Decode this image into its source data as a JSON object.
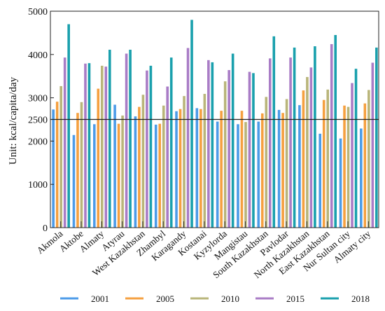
{
  "chart_data": {
    "type": "bar",
    "title": "",
    "xlabel": "",
    "ylabel": "Unit: kcal/capita/day",
    "ylim": [
      0,
      5000
    ],
    "yticks": [
      0,
      1000,
      2000,
      3000,
      4000,
      5000
    ],
    "reference_line": {
      "value": 2500,
      "label": "2500",
      "color": "#222222"
    },
    "grid": false,
    "legend_position": "bottom",
    "categories": [
      "Akmola",
      "Aktobe",
      "Almaty",
      "Atyrau",
      "West Kazakhstan",
      "Zhambyl",
      "Karagandy",
      "Kostanai",
      "Kyzylorda",
      "Mangistau",
      "South Kazakhstan",
      "Pavlodar",
      "North Kazakhstan",
      "East Kazakhstan",
      "Nur Sultan city",
      "Almaty city"
    ],
    "series": [
      {
        "name": "2001",
        "color": "#4c9be8",
        "values": [
          2730,
          2140,
          2390,
          2840,
          2570,
          2380,
          2690,
          2760,
          2450,
          2390,
          2450,
          2720,
          2830,
          2170,
          2060,
          2290
        ]
      },
      {
        "name": "2005",
        "color": "#f5a040",
        "values": [
          2910,
          2650,
          3210,
          2400,
          2790,
          2400,
          2740,
          2740,
          2700,
          2700,
          2640,
          2650,
          3170,
          2950,
          2820,
          2870
        ]
      },
      {
        "name": "2010",
        "color": "#b9b57a",
        "values": [
          3270,
          2900,
          3740,
          2590,
          3070,
          2820,
          3040,
          3090,
          3380,
          2440,
          3020,
          2970,
          3480,
          3190,
          2790,
          3180
        ]
      },
      {
        "name": "2015",
        "color": "#a97cc6",
        "values": [
          3930,
          3790,
          3720,
          4020,
          3630,
          3260,
          4150,
          3870,
          3640,
          3600,
          3910,
          3930,
          3700,
          4240,
          3340,
          3810
        ]
      },
      {
        "name": "2018",
        "color": "#1aa0ad",
        "values": [
          4700,
          3800,
          4110,
          4110,
          3740,
          3930,
          4800,
          3820,
          4020,
          3570,
          4420,
          4160,
          4190,
          4450,
          3670,
          4160
        ]
      }
    ]
  }
}
